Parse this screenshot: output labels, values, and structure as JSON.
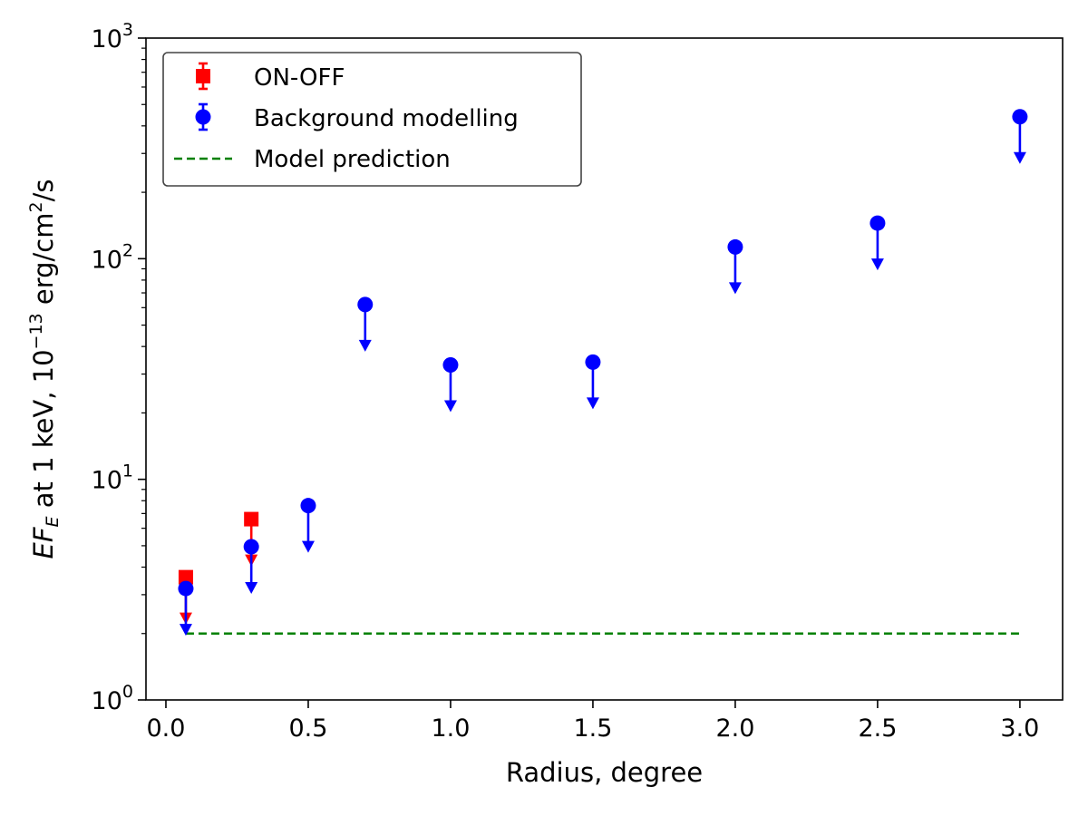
{
  "chart_data": {
    "type": "scatter",
    "yscale": "log",
    "xlabel": "Radius, degree",
    "ylabel": {
      "prefix": "EF",
      "sub": "E",
      "mid": " at 1 keV, 10",
      "exp": "−13",
      "unit": " erg/cm",
      "unit_exp": "2",
      "suffix": "/s"
    },
    "xlim": [
      -0.07,
      3.15
    ],
    "ylim": [
      1,
      1000
    ],
    "x_ticks": [
      {
        "value": 0.0,
        "label": "0.0"
      },
      {
        "value": 0.5,
        "label": "0.5"
      },
      {
        "value": 1.0,
        "label": "1.0"
      },
      {
        "value": 1.5,
        "label": "1.5"
      },
      {
        "value": 2.0,
        "label": "2.0"
      },
      {
        "value": 2.5,
        "label": "2.5"
      },
      {
        "value": 3.0,
        "label": "3.0"
      }
    ],
    "y_ticks": [
      {
        "value": 1,
        "base": "10",
        "exp": "0"
      },
      {
        "value": 10,
        "base": "10",
        "exp": "1"
      },
      {
        "value": 100,
        "base": "10",
        "exp": "2"
      },
      {
        "value": 1000,
        "base": "10",
        "exp": "3"
      }
    ],
    "series": [
      {
        "name": "ON-OFF",
        "color": "#ff0000",
        "marker": "square",
        "upper_limits": true,
        "points": [
          {
            "x": 0.07,
            "y": 3.6
          },
          {
            "x": 0.3,
            "y": 6.6
          }
        ]
      },
      {
        "name": "Background modelling",
        "color": "#0000ff",
        "marker": "circle",
        "upper_limits": true,
        "points": [
          {
            "x": 0.07,
            "y": 3.2
          },
          {
            "x": 0.3,
            "y": 4.95
          },
          {
            "x": 0.5,
            "y": 7.6
          },
          {
            "x": 0.7,
            "y": 62
          },
          {
            "x": 1.0,
            "y": 33
          },
          {
            "x": 1.5,
            "y": 34
          },
          {
            "x": 2.0,
            "y": 113
          },
          {
            "x": 2.5,
            "y": 145
          },
          {
            "x": 3.0,
            "y": 440
          }
        ]
      },
      {
        "name": "Model prediction",
        "color": "#008000",
        "style": "dashed-line",
        "x": [
          0.07,
          3.0
        ],
        "y": [
          2.0,
          2.0
        ]
      }
    ],
    "legend": {
      "position": "upper-left",
      "entries": [
        "ON-OFF",
        "Background modelling",
        "Model prediction"
      ]
    }
  }
}
